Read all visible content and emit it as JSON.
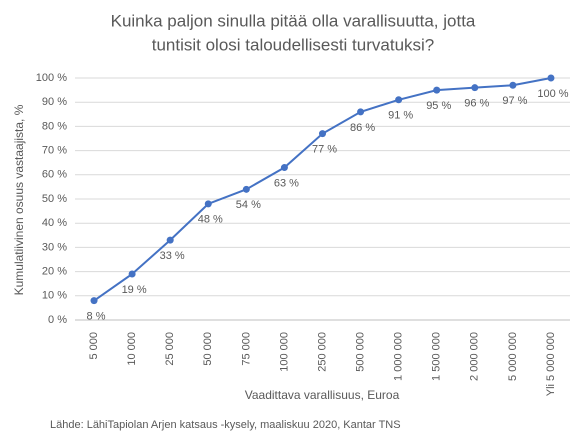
{
  "chart_data": {
    "type": "line",
    "title": [
      "Kuinka paljon sinulla pitää olla varallisuutta, jotta",
      "tuntisit olosi taloudellisesti turvatuksi?"
    ],
    "x_label": "Vaadittava varallisuus, Euroa",
    "y_label": "Kumulatiivinen osuus vastaajista, %",
    "source": "Lähde: LähiTapiolan Arjen katsaus -kysely, maaliskuu 2020, Kantar TNS",
    "categories": [
      "5 000",
      "10 000",
      "25 000",
      "50 000",
      "75 000",
      "100 000",
      "250 000",
      "500 000",
      "1 000 000",
      "1 500 000",
      "2 000 000",
      "5 000 000",
      "Yli 5 000 000"
    ],
    "values": [
      8,
      19,
      33,
      48,
      54,
      63,
      77,
      86,
      91,
      95,
      96,
      97,
      100
    ],
    "value_labels": [
      "8 %",
      "19 %",
      "33 %",
      "48 %",
      "54 %",
      "63 %",
      "77 %",
      "86 %",
      "91 %",
      "95 %",
      "96 %",
      "97 %",
      "100 %"
    ],
    "color": "#4472c4",
    "ylim": [
      0,
      100
    ],
    "yticks": [
      {
        "value": 0,
        "label": "0 %"
      },
      {
        "value": 10,
        "label": "10 %"
      },
      {
        "value": 20,
        "label": "20 %"
      },
      {
        "value": 30,
        "label": "30 %"
      },
      {
        "value": 40,
        "label": "40 %"
      },
      {
        "value": 50,
        "label": "50 %"
      },
      {
        "value": 60,
        "label": "60 %"
      },
      {
        "value": 70,
        "label": "70 %"
      },
      {
        "value": 80,
        "label": "80 %"
      },
      {
        "value": 90,
        "label": "90 %"
      },
      {
        "value": 100,
        "label": "100 %"
      }
    ],
    "grid": true
  }
}
